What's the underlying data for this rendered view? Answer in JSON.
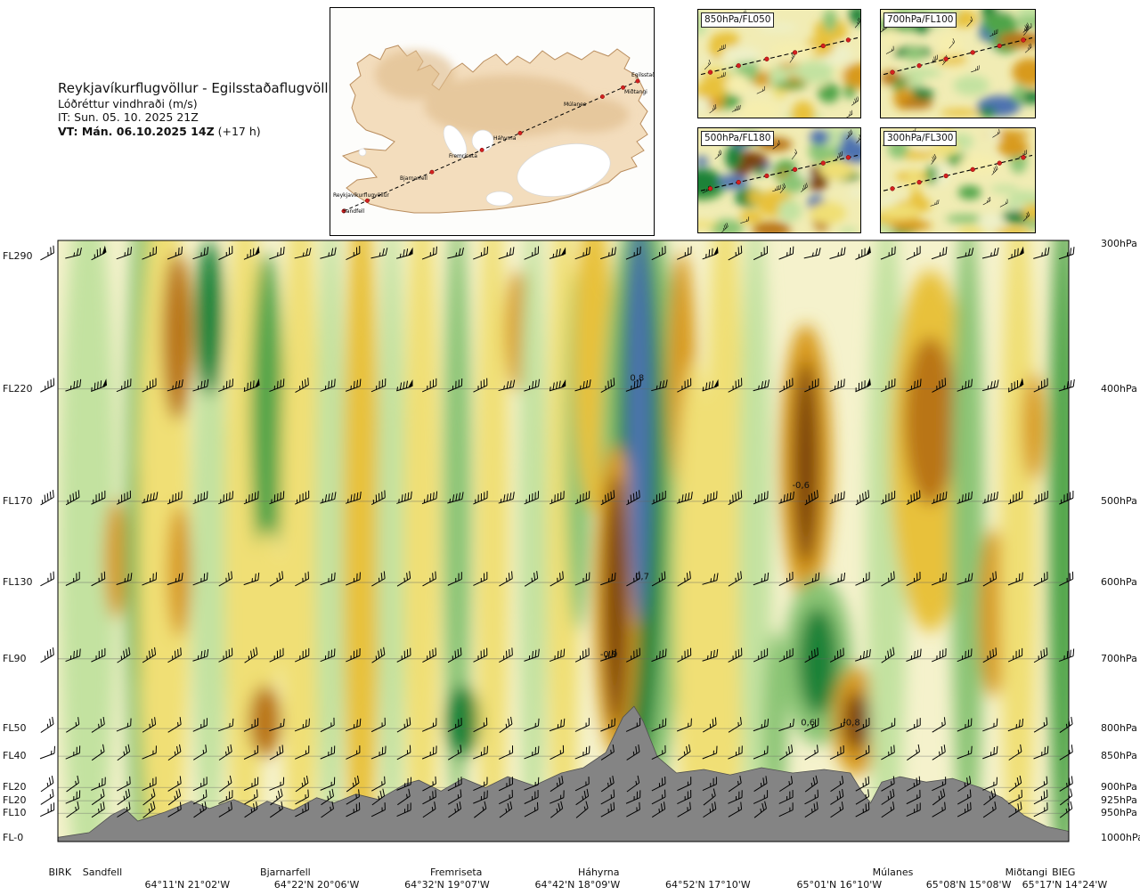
{
  "header": {
    "title": "Reykjavíkurflugvöllur - Egilsstaðaflugvöllur",
    "subtitle": "Lóðréttur vindhraði (m/s)",
    "init_time": "IT: Sun. 05. 10. 2025 21Z",
    "valid_time": "VT: Mán. 06.10.2025 14Z",
    "valid_time_offset": " (+17 h)"
  },
  "route_map": {
    "waypoints": [
      "Reykjavíkurflugvöllur",
      "Sandfell",
      "Bjarnarfell",
      "Fremriseta",
      "Háhyrna",
      "Múlanes",
      "Miðtangi",
      "Egilsstaðir"
    ]
  },
  "panels": [
    {
      "label": "850hPa/FL050",
      "seed": 11,
      "intensity": 0.55
    },
    {
      "label": "700hPa/FL100",
      "seed": 23,
      "intensity": 0.7
    },
    {
      "label": "500hPa/FL180",
      "seed": 37,
      "intensity": 0.95
    },
    {
      "label": "300hPa/FL300",
      "seed": 53,
      "intensity": 0.5
    }
  ],
  "chart_data": {
    "type": "heatmap",
    "title": "Lóðréttur vindhraði (m/s)",
    "units": "m/s",
    "value_range": [
      -1,
      1
    ],
    "y_axis": [
      {
        "fl": "FL290",
        "hpa": "300hPa",
        "y_fl": 0.027,
        "y": 0.006
      },
      {
        "fl": "FL220",
        "hpa": "400hPa",
        "y_fl": 0.247,
        "y": 0.247
      },
      {
        "fl": "FL170",
        "hpa": "500hPa",
        "y_fl": 0.434,
        "y": 0.434
      },
      {
        "fl": "FL130",
        "hpa": "600hPa",
        "y_fl": 0.569,
        "y": 0.569
      },
      {
        "fl": "FL90",
        "hpa": "700hPa",
        "y_fl": 0.696,
        "y": 0.696
      },
      {
        "fl": "FL50",
        "hpa": "800hPa",
        "y_fl": 0.812,
        "y": 0.812
      },
      {
        "fl": "FL40",
        "hpa": "850hPa",
        "y_fl": 0.858,
        "y": 0.858
      },
      {
        "fl": "FL20",
        "hpa": "900hPa",
        "y_fl": 0.91,
        "y": 0.91
      },
      {
        "fl": "FL20",
        "hpa": "925hPa",
        "y_fl": 0.932,
        "y": 0.932
      },
      {
        "fl": "FL10",
        "hpa": "950hPa",
        "y_fl": 0.953,
        "y": 0.953
      },
      {
        "fl": "FL-0",
        "hpa": "1000hPa",
        "y_fl": 0.994,
        "y": 0.994
      }
    ],
    "x_waypoints": [
      {
        "name": "BIRK",
        "x": 0.002
      },
      {
        "name": "Sandfell",
        "x": 0.044
      },
      {
        "name": "Bjarnarfell",
        "x": 0.225
      },
      {
        "name": "Fremriseta",
        "x": 0.394
      },
      {
        "name": "Háhyrna",
        "x": 0.535
      },
      {
        "name": "Múlanes",
        "x": 0.826
      },
      {
        "name": "Miðtangi",
        "x": 0.958
      },
      {
        "name": "BIEG",
        "x": 0.995
      }
    ],
    "x_coordinates": [
      {
        "label": "64°11'N 21°02'W",
        "x": 0.128
      },
      {
        "label": "64°22'N 20°06'W",
        "x": 0.256
      },
      {
        "label": "64°32'N 19°07'W",
        "x": 0.385
      },
      {
        "label": "64°42'N 18°09'W",
        "x": 0.514
      },
      {
        "label": "64°52'N 17°10'W",
        "x": 0.643
      },
      {
        "label": "65°01'N 16°10'W",
        "x": 0.773
      },
      {
        "label": "65°08'N 15°08'W",
        "x": 0.901
      },
      {
        "label": "65°17'N 14°24'W",
        "x": 0.996
      }
    ],
    "contour_labels": [
      {
        "value": "0,8",
        "x": 0.573,
        "y": 0.233
      },
      {
        "value": "-0,6",
        "x": 0.735,
        "y": 0.412
      },
      {
        "value": "0,7",
        "x": 0.578,
        "y": 0.564
      },
      {
        "value": "-0,9",
        "x": 0.545,
        "y": 0.693
      },
      {
        "value": "0,6",
        "x": 0.742,
        "y": 0.807
      },
      {
        "value": "-0,8",
        "x": 0.785,
        "y": 0.807
      }
    ],
    "color_scale": [
      {
        "min": 0.8,
        "color": "#4d72b0"
      },
      {
        "min": 0.6,
        "color": "#1e8238"
      },
      {
        "min": 0.45,
        "color": "#4fa44a"
      },
      {
        "min": 0.3,
        "color": "#8ac474"
      },
      {
        "min": 0.15,
        "color": "#c3e2a0"
      },
      {
        "min": 0.0,
        "color": "#eef0c8"
      },
      {
        "min": -0.15,
        "color": "#f6eeae"
      },
      {
        "min": -0.3,
        "color": "#f0df74"
      },
      {
        "min": -0.45,
        "color": "#e8c13a"
      },
      {
        "min": -0.6,
        "color": "#d89a1e"
      },
      {
        "min": -0.8,
        "color": "#b97413"
      },
      {
        "min": -9,
        "color": "#7c420e"
      }
    ],
    "bands": [
      [
        0.03,
        0.5,
        0.028,
        0.6,
        0.2
      ],
      [
        0.057,
        0.53,
        0.011,
        0.1,
        -0.55
      ],
      [
        0.084,
        0.5,
        0.018,
        0.6,
        0.35
      ],
      [
        0.084,
        0.55,
        0.012,
        0.2,
        0.55
      ],
      [
        0.105,
        0.5,
        0.026,
        0.62,
        -0.3
      ],
      [
        0.118,
        0.16,
        0.015,
        0.14,
        -0.65
      ],
      [
        0.12,
        0.55,
        0.012,
        0.11,
        -0.55
      ],
      [
        0.15,
        0.55,
        0.018,
        0.45,
        0.25
      ],
      [
        0.15,
        0.13,
        0.014,
        0.13,
        0.62
      ],
      [
        0.185,
        0.5,
        0.02,
        0.6,
        -0.2
      ],
      [
        0.207,
        0.3,
        0.016,
        0.28,
        0.45
      ],
      [
        0.207,
        0.62,
        0.016,
        0.14,
        -0.25
      ],
      [
        0.205,
        0.8,
        0.016,
        0.06,
        -0.72
      ],
      [
        0.24,
        0.5,
        0.02,
        0.6,
        -0.25
      ],
      [
        0.27,
        0.5,
        0.015,
        0.55,
        0.25
      ],
      [
        0.3,
        0.5,
        0.018,
        0.6,
        -0.35
      ],
      [
        0.33,
        0.5,
        0.014,
        0.55,
        0.2
      ],
      [
        0.36,
        0.5,
        0.018,
        0.6,
        -0.25
      ],
      [
        0.395,
        0.45,
        0.014,
        0.5,
        0.3
      ],
      [
        0.4,
        0.8,
        0.017,
        0.06,
        0.62
      ],
      [
        0.43,
        0.5,
        0.016,
        0.6,
        -0.3
      ],
      [
        0.455,
        0.15,
        0.012,
        0.1,
        -0.5
      ],
      [
        0.47,
        0.5,
        0.014,
        0.55,
        0.2
      ],
      [
        0.5,
        0.5,
        0.016,
        0.6,
        -0.3
      ],
      [
        0.515,
        0.35,
        0.013,
        0.3,
        0.35
      ],
      [
        0.53,
        0.2,
        0.02,
        0.25,
        -0.4
      ],
      [
        0.578,
        0.45,
        0.042,
        0.52,
        0.4
      ],
      [
        0.576,
        0.42,
        0.024,
        0.46,
        0.65
      ],
      [
        0.552,
        0.6,
        0.022,
        0.26,
        -0.6
      ],
      [
        0.552,
        0.6,
        0.012,
        0.21,
        -0.95
      ],
      [
        0.575,
        0.3,
        0.012,
        0.34,
        0.9
      ],
      [
        0.617,
        0.22,
        0.014,
        0.2,
        -0.6
      ],
      [
        0.63,
        0.6,
        0.02,
        0.4,
        -0.3
      ],
      [
        0.66,
        0.5,
        0.02,
        0.6,
        -0.25
      ],
      [
        0.69,
        0.5,
        0.016,
        0.55,
        0.2
      ],
      [
        0.71,
        0.8,
        0.012,
        0.15,
        0.35
      ],
      [
        0.74,
        0.37,
        0.026,
        0.23,
        -0.5
      ],
      [
        0.74,
        0.37,
        0.013,
        0.17,
        -0.85
      ],
      [
        0.752,
        0.7,
        0.034,
        0.14,
        0.4
      ],
      [
        0.752,
        0.7,
        0.02,
        0.09,
        0.68
      ],
      [
        0.79,
        0.8,
        0.024,
        0.09,
        -0.5
      ],
      [
        0.79,
        0.8,
        0.013,
        0.05,
        -0.85
      ],
      [
        0.82,
        0.5,
        0.02,
        0.55,
        0.25
      ],
      [
        0.863,
        0.35,
        0.04,
        0.3,
        -0.35
      ],
      [
        0.863,
        0.3,
        0.026,
        0.14,
        -0.68
      ],
      [
        0.9,
        0.5,
        0.016,
        0.55,
        0.3
      ],
      [
        0.925,
        0.62,
        0.014,
        0.14,
        -0.55
      ],
      [
        0.95,
        0.5,
        0.018,
        0.58,
        -0.3
      ],
      [
        0.965,
        0.31,
        0.011,
        0.09,
        -0.55
      ],
      [
        0.995,
        0.5,
        0.015,
        0.58,
        0.45
      ]
    ],
    "terrain": [
      [
        0.0,
        0.993
      ],
      [
        0.031,
        0.985
      ],
      [
        0.053,
        0.956
      ],
      [
        0.066,
        0.945
      ],
      [
        0.079,
        0.966
      ],
      [
        0.106,
        0.951
      ],
      [
        0.132,
        0.933
      ],
      [
        0.15,
        0.945
      ],
      [
        0.174,
        0.93
      ],
      [
        0.194,
        0.945
      ],
      [
        0.207,
        0.933
      ],
      [
        0.233,
        0.948
      ],
      [
        0.256,
        0.927
      ],
      [
        0.273,
        0.936
      ],
      [
        0.295,
        0.921
      ],
      [
        0.317,
        0.93
      ],
      [
        0.344,
        0.904
      ],
      [
        0.357,
        0.898
      ],
      [
        0.379,
        0.916
      ],
      [
        0.401,
        0.895
      ],
      [
        0.423,
        0.91
      ],
      [
        0.445,
        0.892
      ],
      [
        0.471,
        0.907
      ],
      [
        0.498,
        0.886
      ],
      [
        0.52,
        0.877
      ],
      [
        0.542,
        0.852
      ],
      [
        0.559,
        0.793
      ],
      [
        0.57,
        0.775
      ],
      [
        0.579,
        0.8
      ],
      [
        0.593,
        0.859
      ],
      [
        0.612,
        0.886
      ],
      [
        0.639,
        0.88
      ],
      [
        0.665,
        0.889
      ],
      [
        0.696,
        0.877
      ],
      [
        0.727,
        0.886
      ],
      [
        0.758,
        0.88
      ],
      [
        0.784,
        0.886
      ],
      [
        0.795,
        0.916
      ],
      [
        0.804,
        0.936
      ],
      [
        0.815,
        0.901
      ],
      [
        0.833,
        0.892
      ],
      [
        0.859,
        0.901
      ],
      [
        0.885,
        0.895
      ],
      [
        0.912,
        0.91
      ],
      [
        0.934,
        0.927
      ],
      [
        0.956,
        0.957
      ],
      [
        0.978,
        0.975
      ],
      [
        1.0,
        0.983
      ]
    ],
    "wind_barbs": {
      "rows": [
        0.027,
        0.247,
        0.434,
        0.569,
        0.696,
        0.812,
        0.858,
        0.91,
        0.932,
        0.953
      ],
      "columns": 41,
      "col_start": -0.011,
      "col_step": 0.0252
    }
  }
}
